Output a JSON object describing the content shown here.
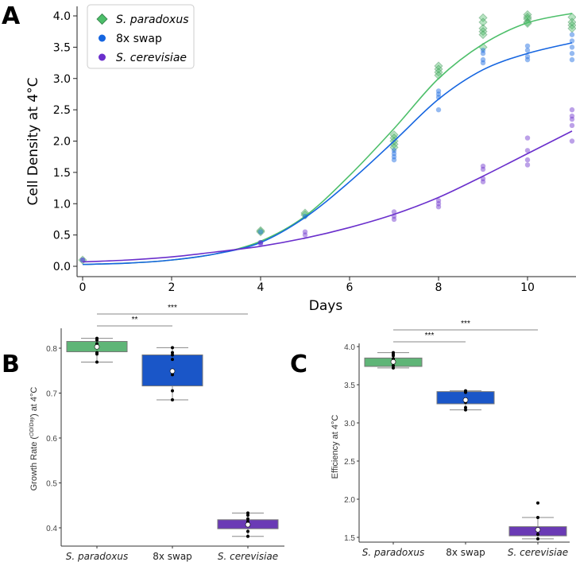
{
  "panel_labels": [
    "A",
    "B",
    "C"
  ],
  "colors": {
    "green": "#4dbf6a",
    "green_box": "#5fb577",
    "blue": "#1565e0",
    "blue_box": "#1a56c8",
    "purple": "#6a2fcc",
    "purple_box": "#6a3ab5"
  },
  "chart_data": [
    {
      "type": "scatter",
      "title": "",
      "xlabel": "Days",
      "ylabel": "Cell Density at 4°C",
      "xlim": [
        -0.3,
        11
      ],
      "ylim": [
        -0.2,
        4.2
      ],
      "xticks": [
        0,
        2,
        4,
        6,
        8,
        10
      ],
      "yticks": [
        0.0,
        0.5,
        1.0,
        1.5,
        2.0,
        2.5,
        3.0,
        3.5,
        4.0
      ],
      "legend_position": "top-left",
      "series": [
        {
          "name": "S. paradoxus",
          "marker": "diamond",
          "color": "#4dbf6a",
          "fit": {
            "x": [
              0,
              1,
              2,
              3,
              4,
              5,
              6,
              7,
              8,
              9,
              10,
              11
            ],
            "y": [
              0.03,
              0.05,
              0.1,
              0.2,
              0.4,
              0.8,
              1.45,
              2.2,
              3.0,
              3.55,
              3.89,
              4.04
            ]
          },
          "points": [
            [
              0,
              0.1
            ],
            [
              4,
              0.57
            ],
            [
              4,
              0.55
            ],
            [
              5,
              0.85
            ],
            [
              5,
              0.82
            ],
            [
              7,
              2.1
            ],
            [
              7,
              2.05
            ],
            [
              7,
              2.0
            ],
            [
              7,
              1.95
            ],
            [
              7,
              1.9
            ],
            [
              8,
              3.2
            ],
            [
              8,
              3.15
            ],
            [
              8,
              3.1
            ],
            [
              8,
              3.05
            ],
            [
              9,
              3.97
            ],
            [
              9,
              3.9
            ],
            [
              9,
              3.8
            ],
            [
              9,
              3.75
            ],
            [
              9,
              3.7
            ],
            [
              9,
              3.5
            ],
            [
              10,
              4.02
            ],
            [
              10,
              3.98
            ],
            [
              10,
              3.95
            ],
            [
              10,
              3.9
            ],
            [
              10,
              3.88
            ],
            [
              11,
              3.98
            ],
            [
              11,
              3.9
            ],
            [
              11,
              3.85
            ],
            [
              11,
              3.8
            ]
          ]
        },
        {
          "name": "8x swap",
          "marker": "circle",
          "color": "#1565e0",
          "fit": {
            "x": [
              0,
              1,
              2,
              3,
              4,
              5,
              6,
              7,
              8,
              9,
              10,
              11
            ],
            "y": [
              0.03,
              0.05,
              0.1,
              0.2,
              0.38,
              0.78,
              1.35,
              2.0,
              2.67,
              3.14,
              3.4,
              3.57
            ]
          },
          "points": [
            [
              0,
              0.1
            ],
            [
              4,
              0.55
            ],
            [
              4,
              0.38
            ],
            [
              5,
              0.8
            ],
            [
              7,
              1.85
            ],
            [
              7,
              1.8
            ],
            [
              7,
              1.75
            ],
            [
              7,
              1.7
            ],
            [
              8,
              2.8
            ],
            [
              8,
              2.75
            ],
            [
              8,
              2.7
            ],
            [
              8,
              2.5
            ],
            [
              9,
              3.45
            ],
            [
              9,
              3.4
            ],
            [
              9,
              3.3
            ],
            [
              9,
              3.25
            ],
            [
              10,
              3.52
            ],
            [
              10,
              3.45
            ],
            [
              10,
              3.35
            ],
            [
              10,
              3.3
            ],
            [
              11,
              3.7
            ],
            [
              11,
              3.6
            ],
            [
              11,
              3.5
            ],
            [
              11,
              3.4
            ],
            [
              11,
              3.3
            ]
          ]
        },
        {
          "name": "S. cerevisiae",
          "marker": "circle",
          "color": "#6a2fcc",
          "fit": {
            "x": [
              0,
              1,
              2,
              3,
              4,
              5,
              6,
              7,
              8,
              9,
              10,
              11
            ],
            "y": [
              0.07,
              0.1,
              0.15,
              0.23,
              0.32,
              0.45,
              0.62,
              0.83,
              1.1,
              1.44,
              1.8,
              2.16
            ]
          },
          "points": [
            [
              0,
              0.1
            ],
            [
              4,
              0.38
            ],
            [
              4,
              0.36
            ],
            [
              5,
              0.55
            ],
            [
              5,
              0.5
            ],
            [
              7,
              0.87
            ],
            [
              7,
              0.8
            ],
            [
              7,
              0.75
            ],
            [
              8,
              1.05
            ],
            [
              8,
              1.0
            ],
            [
              8,
              0.95
            ],
            [
              9,
              1.6
            ],
            [
              9,
              1.55
            ],
            [
              9,
              1.4
            ],
            [
              9,
              1.35
            ],
            [
              10,
              2.05
            ],
            [
              10,
              1.85
            ],
            [
              10,
              1.7
            ],
            [
              10,
              1.62
            ],
            [
              11,
              2.5
            ],
            [
              11,
              2.4
            ],
            [
              11,
              2.35
            ],
            [
              11,
              2.25
            ],
            [
              11,
              2.0
            ]
          ]
        }
      ]
    },
    {
      "type": "box",
      "ylabel": "Growth Rate (OD/Day) at 4°C",
      "ylabel_main": "Growth Rate (",
      "ylabel_num": "OD",
      "ylabel_den": "Day",
      "ylabel_tail": ") at 4°C",
      "ylim": [
        0.37,
        0.84
      ],
      "yticks": [
        0.4,
        0.5,
        0.6,
        0.7,
        0.8
      ],
      "categories": [
        "S. paradoxus",
        "8x swap",
        "S. cerevisiae"
      ],
      "boxes": [
        {
          "q1": 0.792,
          "q3": 0.815,
          "median": 0.803,
          "whisker_low": 0.769,
          "whisker_high": 0.822,
          "mean": 0.803,
          "points": [
            0.822,
            0.818,
            0.81,
            0.805,
            0.79,
            0.787,
            0.769
          ]
        },
        {
          "q1": 0.716,
          "q3": 0.785,
          "median": 0.749,
          "whisker_low": 0.685,
          "whisker_high": 0.801,
          "mean": 0.749,
          "points": [
            0.801,
            0.79,
            0.785,
            0.775,
            0.748,
            0.741,
            0.705,
            0.685
          ]
        },
        {
          "q1": 0.398,
          "q3": 0.418,
          "median": 0.407,
          "whisker_low": 0.381,
          "whisker_high": 0.433,
          "mean": 0.407,
          "points": [
            0.433,
            0.428,
            0.42,
            0.414,
            0.406,
            0.392,
            0.381
          ]
        }
      ],
      "significance": [
        {
          "from": 0,
          "to": 1,
          "label": "**"
        },
        {
          "from": 0,
          "to": 2,
          "label": "***"
        }
      ]
    },
    {
      "type": "box",
      "ylabel": "Efficiency at 4°C",
      "ylim": [
        1.4,
        4.05
      ],
      "yticks": [
        1.5,
        2.0,
        2.5,
        3.0,
        3.5,
        4.0
      ],
      "categories": [
        "S. paradoxus",
        "8x swap",
        "S. cerevisiae"
      ],
      "boxes": [
        {
          "q1": 3.74,
          "q3": 3.85,
          "median": 3.8,
          "whisker_low": 3.72,
          "whisker_high": 3.92,
          "mean": 3.8,
          "points": [
            3.92,
            3.9,
            3.88,
            3.84,
            3.8,
            3.75,
            3.72
          ]
        },
        {
          "q1": 3.25,
          "q3": 3.41,
          "median": 3.3,
          "whisker_low": 3.17,
          "whisker_high": 3.42,
          "mean": 3.3,
          "points": [
            3.42,
            3.4,
            3.27,
            3.2,
            3.17
          ]
        },
        {
          "q1": 1.52,
          "q3": 1.64,
          "median": 1.6,
          "whisker_low": 1.48,
          "whisker_high": 1.76,
          "mean": 1.6,
          "points": [
            1.95,
            1.76,
            1.6,
            1.54,
            1.48
          ]
        }
      ],
      "significance": [
        {
          "from": 0,
          "to": 1,
          "label": "***"
        },
        {
          "from": 0,
          "to": 2,
          "label": "***"
        }
      ]
    }
  ]
}
